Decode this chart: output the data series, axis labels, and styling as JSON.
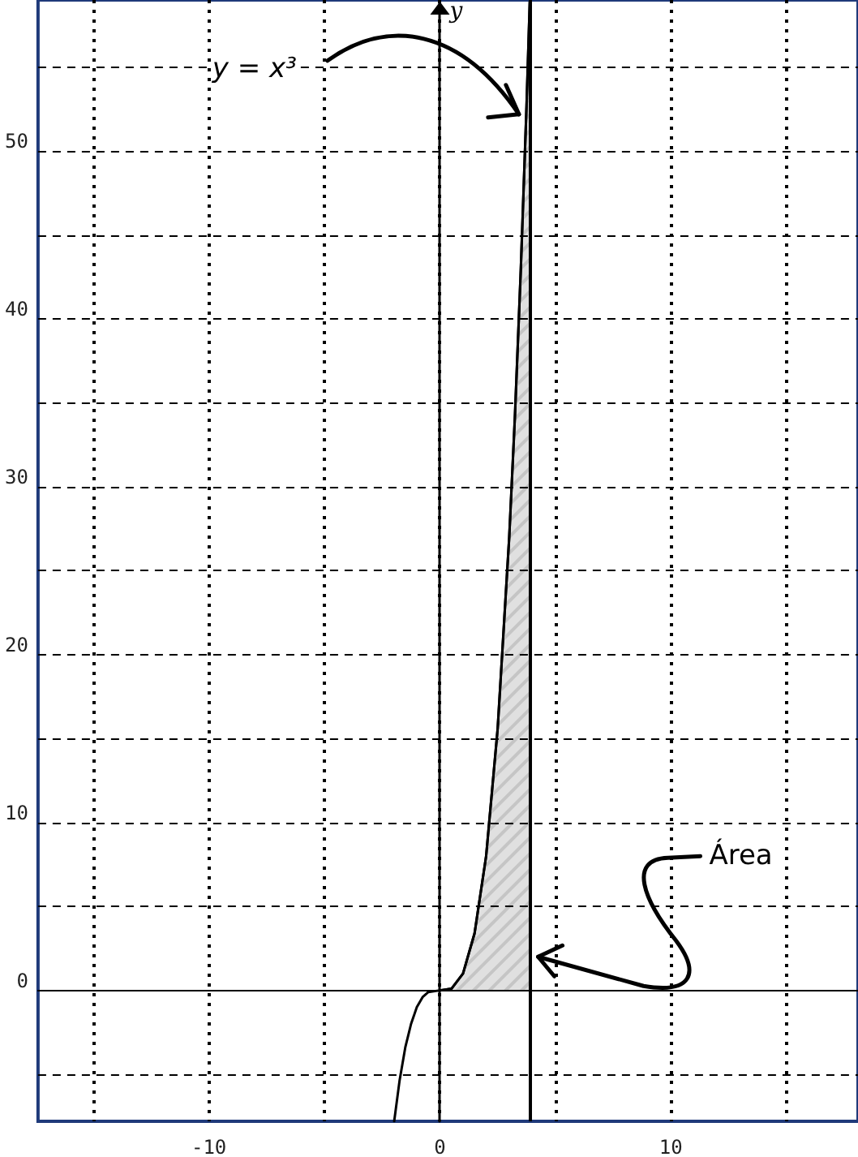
{
  "chart_data": {
    "type": "line",
    "ylabel": "y",
    "series": [
      {
        "color": "#000000",
        "x": [
          -1.98,
          -1.75,
          -1.5,
          -1.25,
          -1,
          -0.75,
          -0.5,
          0,
          0.5,
          1,
          1.5,
          2,
          2.5,
          3,
          3.25,
          3.5,
          3.75,
          3.89
        ],
        "values": [
          -7.8,
          -5.4,
          -3.4,
          -2,
          -1,
          -0.4,
          -0.1,
          0,
          0.1,
          1,
          3.4,
          8,
          15.6,
          27,
          34.3,
          42.9,
          52.7,
          58.9
        ]
      },
      {
        "type": "area",
        "color": "#000000",
        "x": [
          0,
          0.5,
          1,
          1.5,
          2,
          2.5,
          3,
          3.25,
          3.5,
          3.75,
          3.89
        ],
        "values": [
          0,
          0.1,
          1,
          3.4,
          8,
          15.6,
          27,
          34.3,
          42.9,
          52.7,
          58.9
        ]
      }
    ],
    "xlim": [
      -17.4,
      18.1
    ],
    "ylim": [
      -7.8,
      59
    ],
    "xticks": [
      {
        "value": -15,
        "label": null
      },
      -10,
      {
        "value": -5,
        "label": null
      },
      0,
      {
        "value": 5,
        "label": null
      },
      10,
      {
        "value": 15,
        "label": null
      }
    ],
    "yticks": [
      {
        "value": -5,
        "label": null
      },
      0,
      {
        "value": 5,
        "label": null
      },
      10,
      {
        "value": 15,
        "label": null
      },
      20,
      {
        "value": 25,
        "label": null
      },
      30,
      {
        "value": 35,
        "label": null
      },
      40,
      {
        "value": 45,
        "label": null
      },
      50,
      {
        "value": 55,
        "label": null
      }
    ],
    "grid": true,
    "marker": "none",
    "line_style": "solid",
    "ref_lines": [
      {
        "axis": "x",
        "value": 3.9,
        "label": null,
        "color": "#000000"
      }
    ],
    "annotations": [
      {
        "text": "y = x³",
        "x": 3.7,
        "y": 52
      },
      {
        "text": "Área",
        "x": 3.9,
        "y": 2
      }
    ]
  }
}
